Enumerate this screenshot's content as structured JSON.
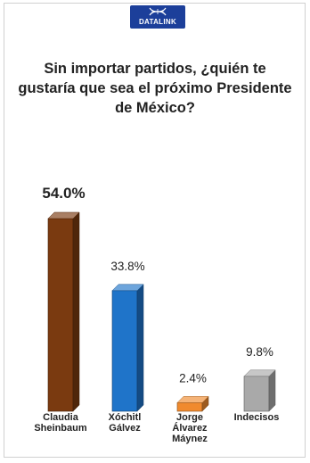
{
  "brand": {
    "name": "DATALINK"
  },
  "chart_data": {
    "type": "bar",
    "title": "Sin importar partidos, ¿quién te gustaría que sea el próximo Presidente de México?",
    "categories": [
      [
        "Claudia",
        "Sheinbaum"
      ],
      [
        "Xóchitl",
        "Gálvez"
      ],
      [
        "Jorge",
        "Álvarez",
        "Máynez"
      ],
      [
        "Indecisos"
      ]
    ],
    "values": [
      54.0,
      33.8,
      2.4,
      9.8
    ],
    "value_labels": [
      "54.0%",
      "33.8%",
      "2.4%",
      "9.8%"
    ],
    "colors": [
      "#7a3a10",
      "#1f74c9",
      "#f08a2e",
      "#a9a9a9"
    ],
    "ylim": [
      0,
      60
    ],
    "grid": false,
    "legend": "none"
  }
}
